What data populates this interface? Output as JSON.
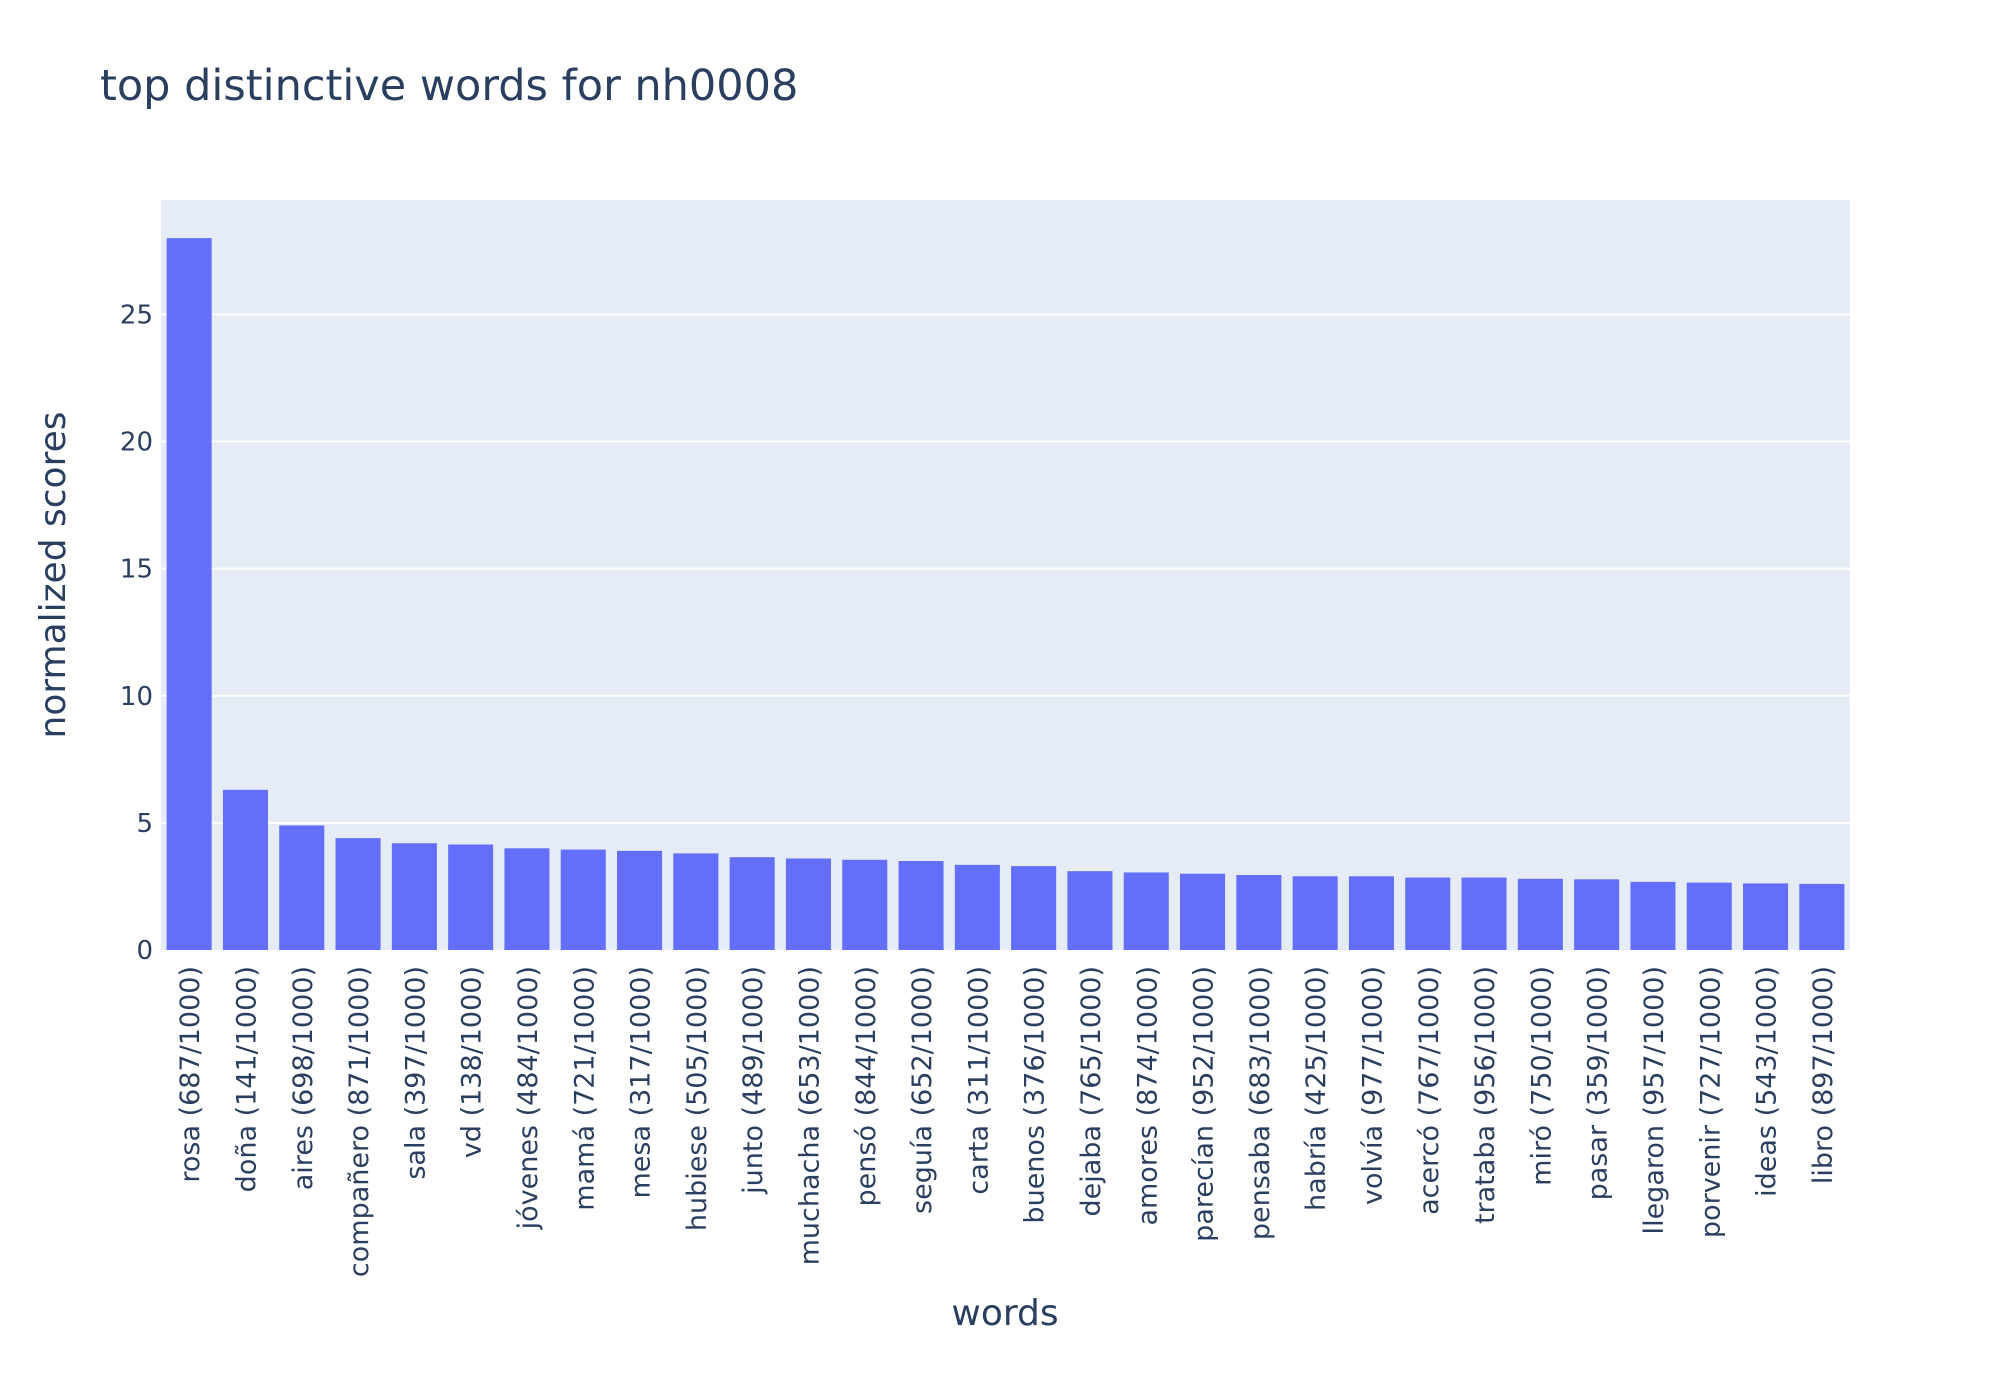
{
  "chart_data": {
    "type": "bar",
    "title": "top distinctive words for nh0008",
    "xlabel": "words",
    "ylabel": "normalized scores",
    "ylim": [
      0,
      29.5
    ],
    "yticks": [
      0,
      5,
      10,
      15,
      20,
      25
    ],
    "grid": true,
    "legend": "none",
    "colors": {
      "bar": "#636efa",
      "plot_bg": "#e5ecf6",
      "grid": "#ffffff",
      "text": "#2a3f5f"
    },
    "categories": [
      "rosa (687/1000)",
      "doña (141/1000)",
      "aires (698/1000)",
      "compañero (871/1000)",
      "sala (397/1000)",
      "vd (138/1000)",
      "jóvenes (484/1000)",
      "mamá (721/1000)",
      "mesa (317/1000)",
      "hubiese (505/1000)",
      "junto (489/1000)",
      "muchacha (653/1000)",
      "pensó (844/1000)",
      "seguía (652/1000)",
      "carta (311/1000)",
      "buenos (376/1000)",
      "dejaba (765/1000)",
      "amores (874/1000)",
      "parecían (952/1000)",
      "pensaba (683/1000)",
      "habría (425/1000)",
      "volvía (977/1000)",
      "acercó (767/1000)",
      "trataba (956/1000)",
      "miró (750/1000)",
      "pasar (359/1000)",
      "llegaron (957/1000)",
      "porvenir (727/1000)",
      "ideas (543/1000)",
      "libro (897/1000)"
    ],
    "values": [
      28.0,
      6.3,
      4.9,
      4.4,
      4.2,
      4.15,
      4.0,
      3.95,
      3.9,
      3.8,
      3.65,
      3.6,
      3.55,
      3.5,
      3.35,
      3.3,
      3.1,
      3.05,
      3.0,
      2.95,
      2.9,
      2.9,
      2.85,
      2.85,
      2.8,
      2.78,
      2.68,
      2.65,
      2.62,
      2.6
    ]
  }
}
